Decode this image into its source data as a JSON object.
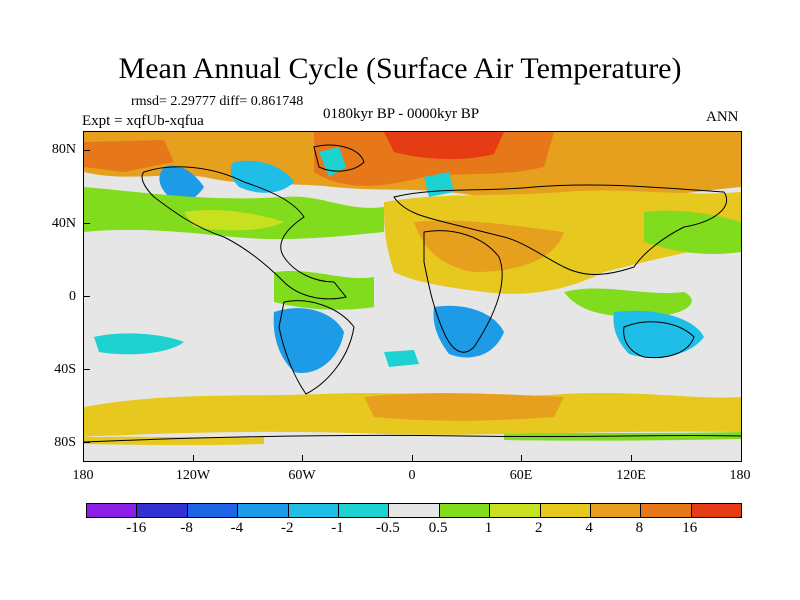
{
  "title": "Mean Annual Cycle (Surface Air Temperature)",
  "stats": "rmsd= 2.29777 diff= 0.861748",
  "expt": "Expt = xqfUb-xqfua",
  "period": "0180kyr BP - 0000kyr BP",
  "season": "ANN",
  "lat_labels": [
    "80N",
    "40N",
    "0",
    "40S",
    "80S"
  ],
  "lon_labels": [
    "180",
    "120W",
    "60W",
    "0",
    "60E",
    "120E",
    "180"
  ],
  "colorbar": {
    "colors": [
      "#8c1ee6",
      "#3232d2",
      "#1e64e6",
      "#1e9be6",
      "#1ebee6",
      "#1ed2d2",
      "#e6e6e6",
      "#82dc1e",
      "#c8e11e",
      "#e6c81e",
      "#e6a01e",
      "#e67819",
      "#e63c14"
    ],
    "labels": [
      "-16",
      "-8",
      "-4",
      "-2",
      "-1",
      "-0.5",
      "0.5",
      "1",
      "2",
      "4",
      "8",
      "16"
    ]
  }
}
